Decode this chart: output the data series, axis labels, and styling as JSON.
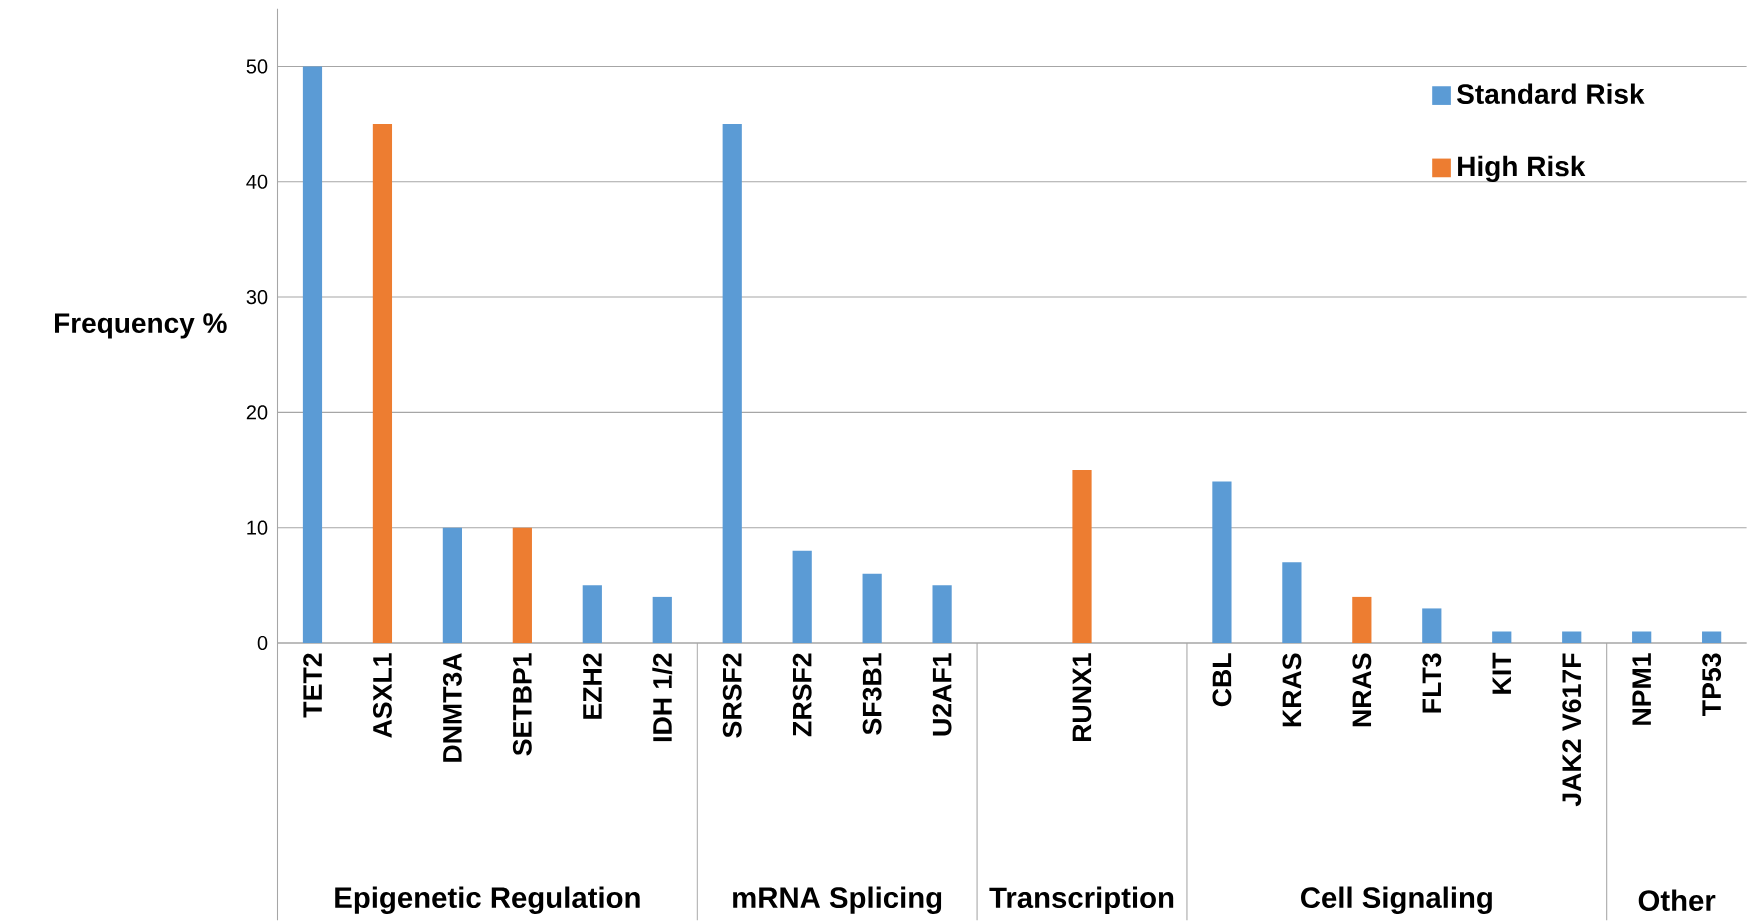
{
  "chart_data": {
    "type": "bar",
    "ylabel": "Frequency %",
    "categories": [
      "TET2",
      "ASXL1",
      "DNMT3A",
      "SETBP1",
      "EZH2",
      "IDH 1/2",
      "SRSF2",
      "ZRSF2",
      "SF3B1",
      "U2AF1",
      null,
      "RUNX1",
      null,
      "CBL",
      "KRAS",
      "NRAS",
      "FLT3",
      "KIT",
      "JAK2 V617F",
      "NPM1",
      "TP53"
    ],
    "series": [
      {
        "name": "Standard Risk",
        "color": "#5b9bd5",
        "values": [
          50,
          null,
          10,
          null,
          5,
          4,
          45,
          8,
          6,
          5,
          null,
          null,
          null,
          14,
          7,
          null,
          3,
          1,
          1,
          1,
          1
        ]
      },
      {
        "name": "High Risk",
        "color": "#ed7d31",
        "values": [
          null,
          45,
          null,
          10,
          null,
          null,
          null,
          null,
          null,
          null,
          null,
          15,
          null,
          null,
          null,
          4,
          null,
          null,
          null,
          null,
          null
        ]
      }
    ],
    "ylim": [
      0,
      55
    ],
    "yticks": [
      0,
      10,
      20,
      30,
      40,
      50
    ],
    "grid": "y",
    "legend": "top right",
    "annotations": [
      "Epigenetic Regulation",
      "mRNA Splicing",
      "Transcription",
      "Cell Signaling",
      "Other"
    ]
  }
}
